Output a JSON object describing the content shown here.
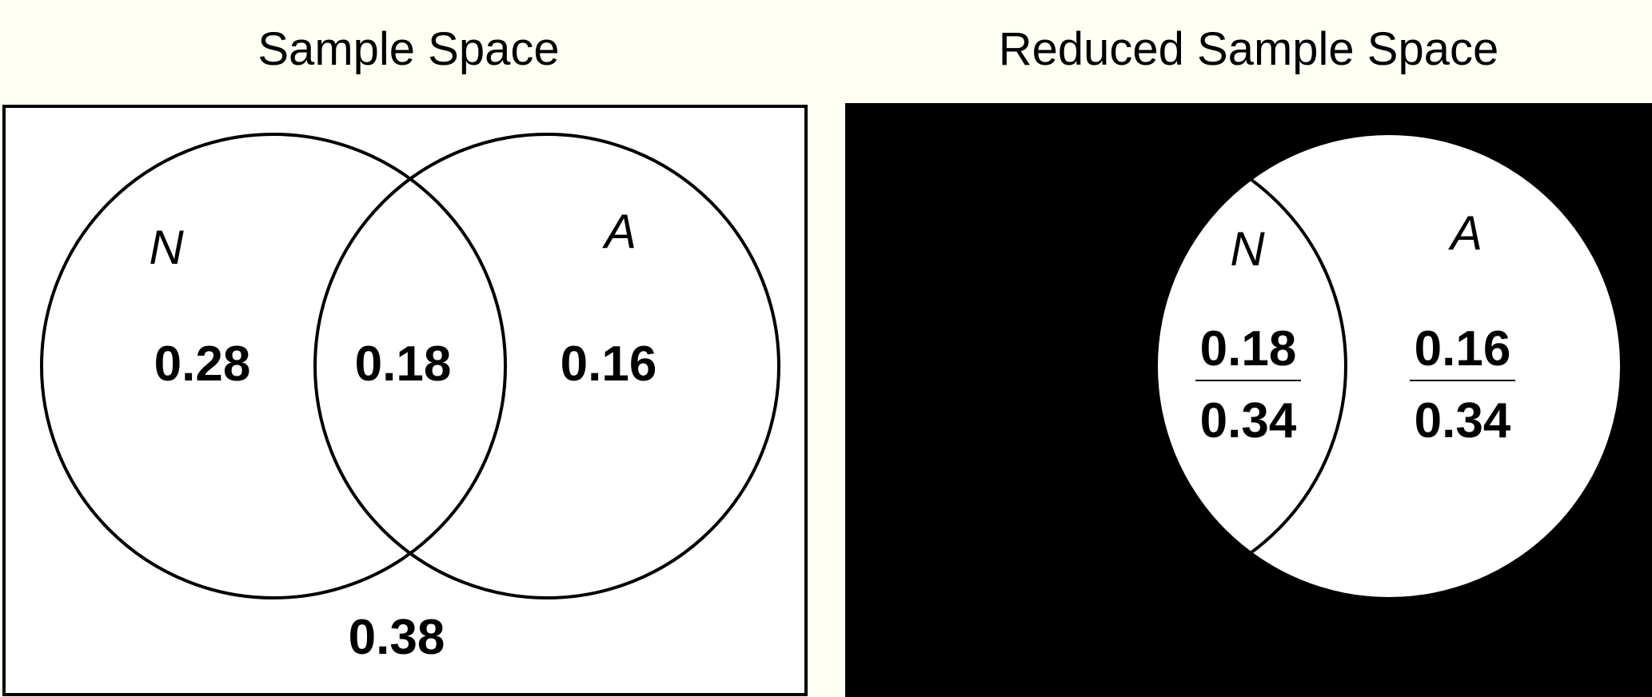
{
  "left_panel": {
    "title": "Sample Space",
    "set_n_label": "N",
    "set_a_label": "A",
    "n_only": "0.28",
    "intersection": "0.18",
    "a_only": "0.16",
    "outside": "0.38"
  },
  "right_panel": {
    "title": "Reduced Sample Space",
    "set_n_label": "N",
    "set_a_label": "A",
    "n_fraction": {
      "numerator": "0.18",
      "denominator": "0.34"
    },
    "a_fraction": {
      "numerator": "0.16",
      "denominator": "0.34"
    }
  },
  "colors": {
    "background": "#fffff4",
    "panel": "#ffffff",
    "masked": "#000000",
    "stroke": "#000000"
  }
}
